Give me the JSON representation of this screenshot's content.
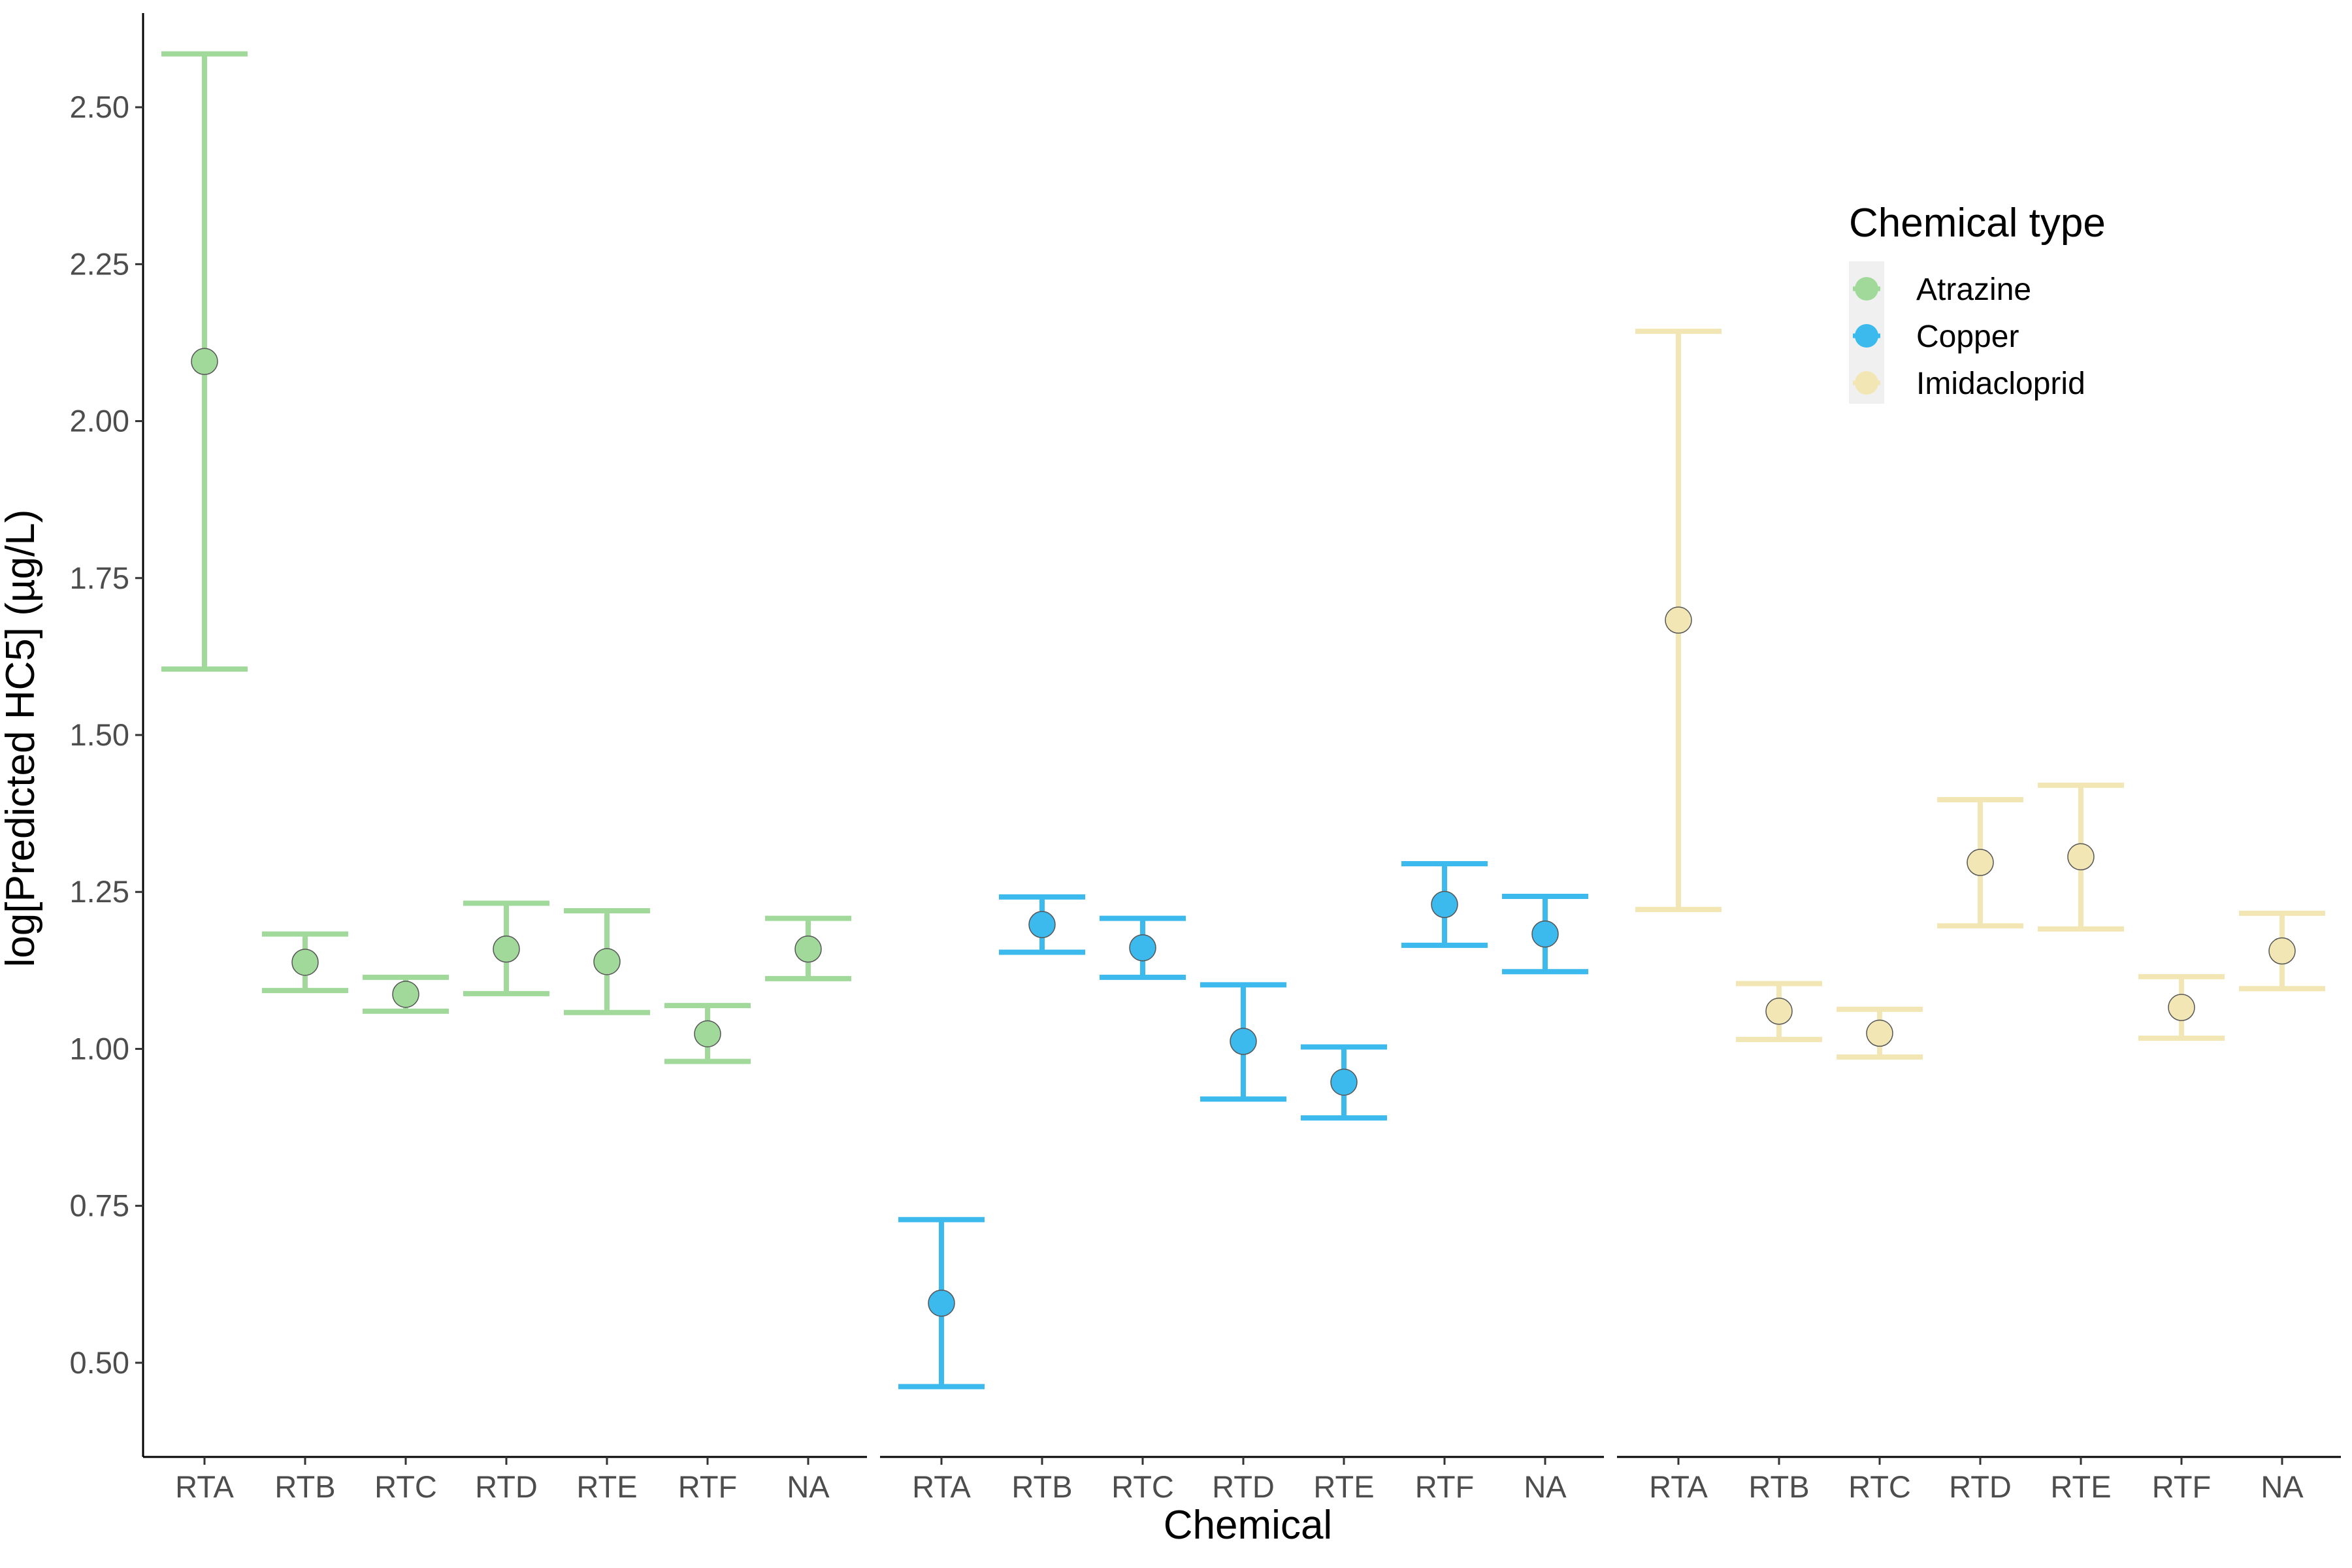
{
  "chart_data": {
    "type": "scatter",
    "xlabel": "Chemical",
    "ylabel": "log[Predicted HC5] (µg/L)",
    "ylim": [
      0.35,
      2.65
    ],
    "yticks": [
      "0.50",
      "0.75",
      "1.00",
      "1.25",
      "1.50",
      "1.75",
      "2.00",
      "2.25",
      "2.50"
    ],
    "categories": [
      "RTA",
      "RTB",
      "RTC",
      "RTD",
      "RTE",
      "RTF",
      "NA"
    ],
    "legend": {
      "title": "Chemical type",
      "position": "top-right"
    },
    "grid": false,
    "series": [
      {
        "name": "Atrazine",
        "color": "#a1d99b",
        "values": [
          2.095,
          1.138,
          1.087,
          1.159,
          1.139,
          1.024,
          1.159
        ],
        "lower": [
          1.605,
          1.093,
          1.06,
          1.088,
          1.058,
          0.98,
          1.112
        ],
        "upper": [
          2.585,
          1.183,
          1.114,
          1.232,
          1.22,
          1.069,
          1.208
        ]
      },
      {
        "name": "Copper",
        "color": "#3cb9ed",
        "values": [
          0.595,
          1.198,
          1.161,
          1.012,
          0.947,
          1.23,
          1.183
        ],
        "lower": [
          0.462,
          1.154,
          1.114,
          0.92,
          0.89,
          1.165,
          1.123
        ],
        "upper": [
          0.728,
          1.242,
          1.208,
          1.102,
          1.003,
          1.295,
          1.243
        ]
      },
      {
        "name": "Imidacloprid",
        "color": "#f2e7b4",
        "values": [
          1.683,
          1.06,
          1.025,
          1.297,
          1.306,
          1.066,
          1.156
        ],
        "lower": [
          1.222,
          1.015,
          0.987,
          1.196,
          1.191,
          1.017,
          1.096
        ],
        "upper": [
          2.143,
          1.104,
          1.063,
          1.397,
          1.42,
          1.115,
          1.216
        ]
      }
    ]
  }
}
